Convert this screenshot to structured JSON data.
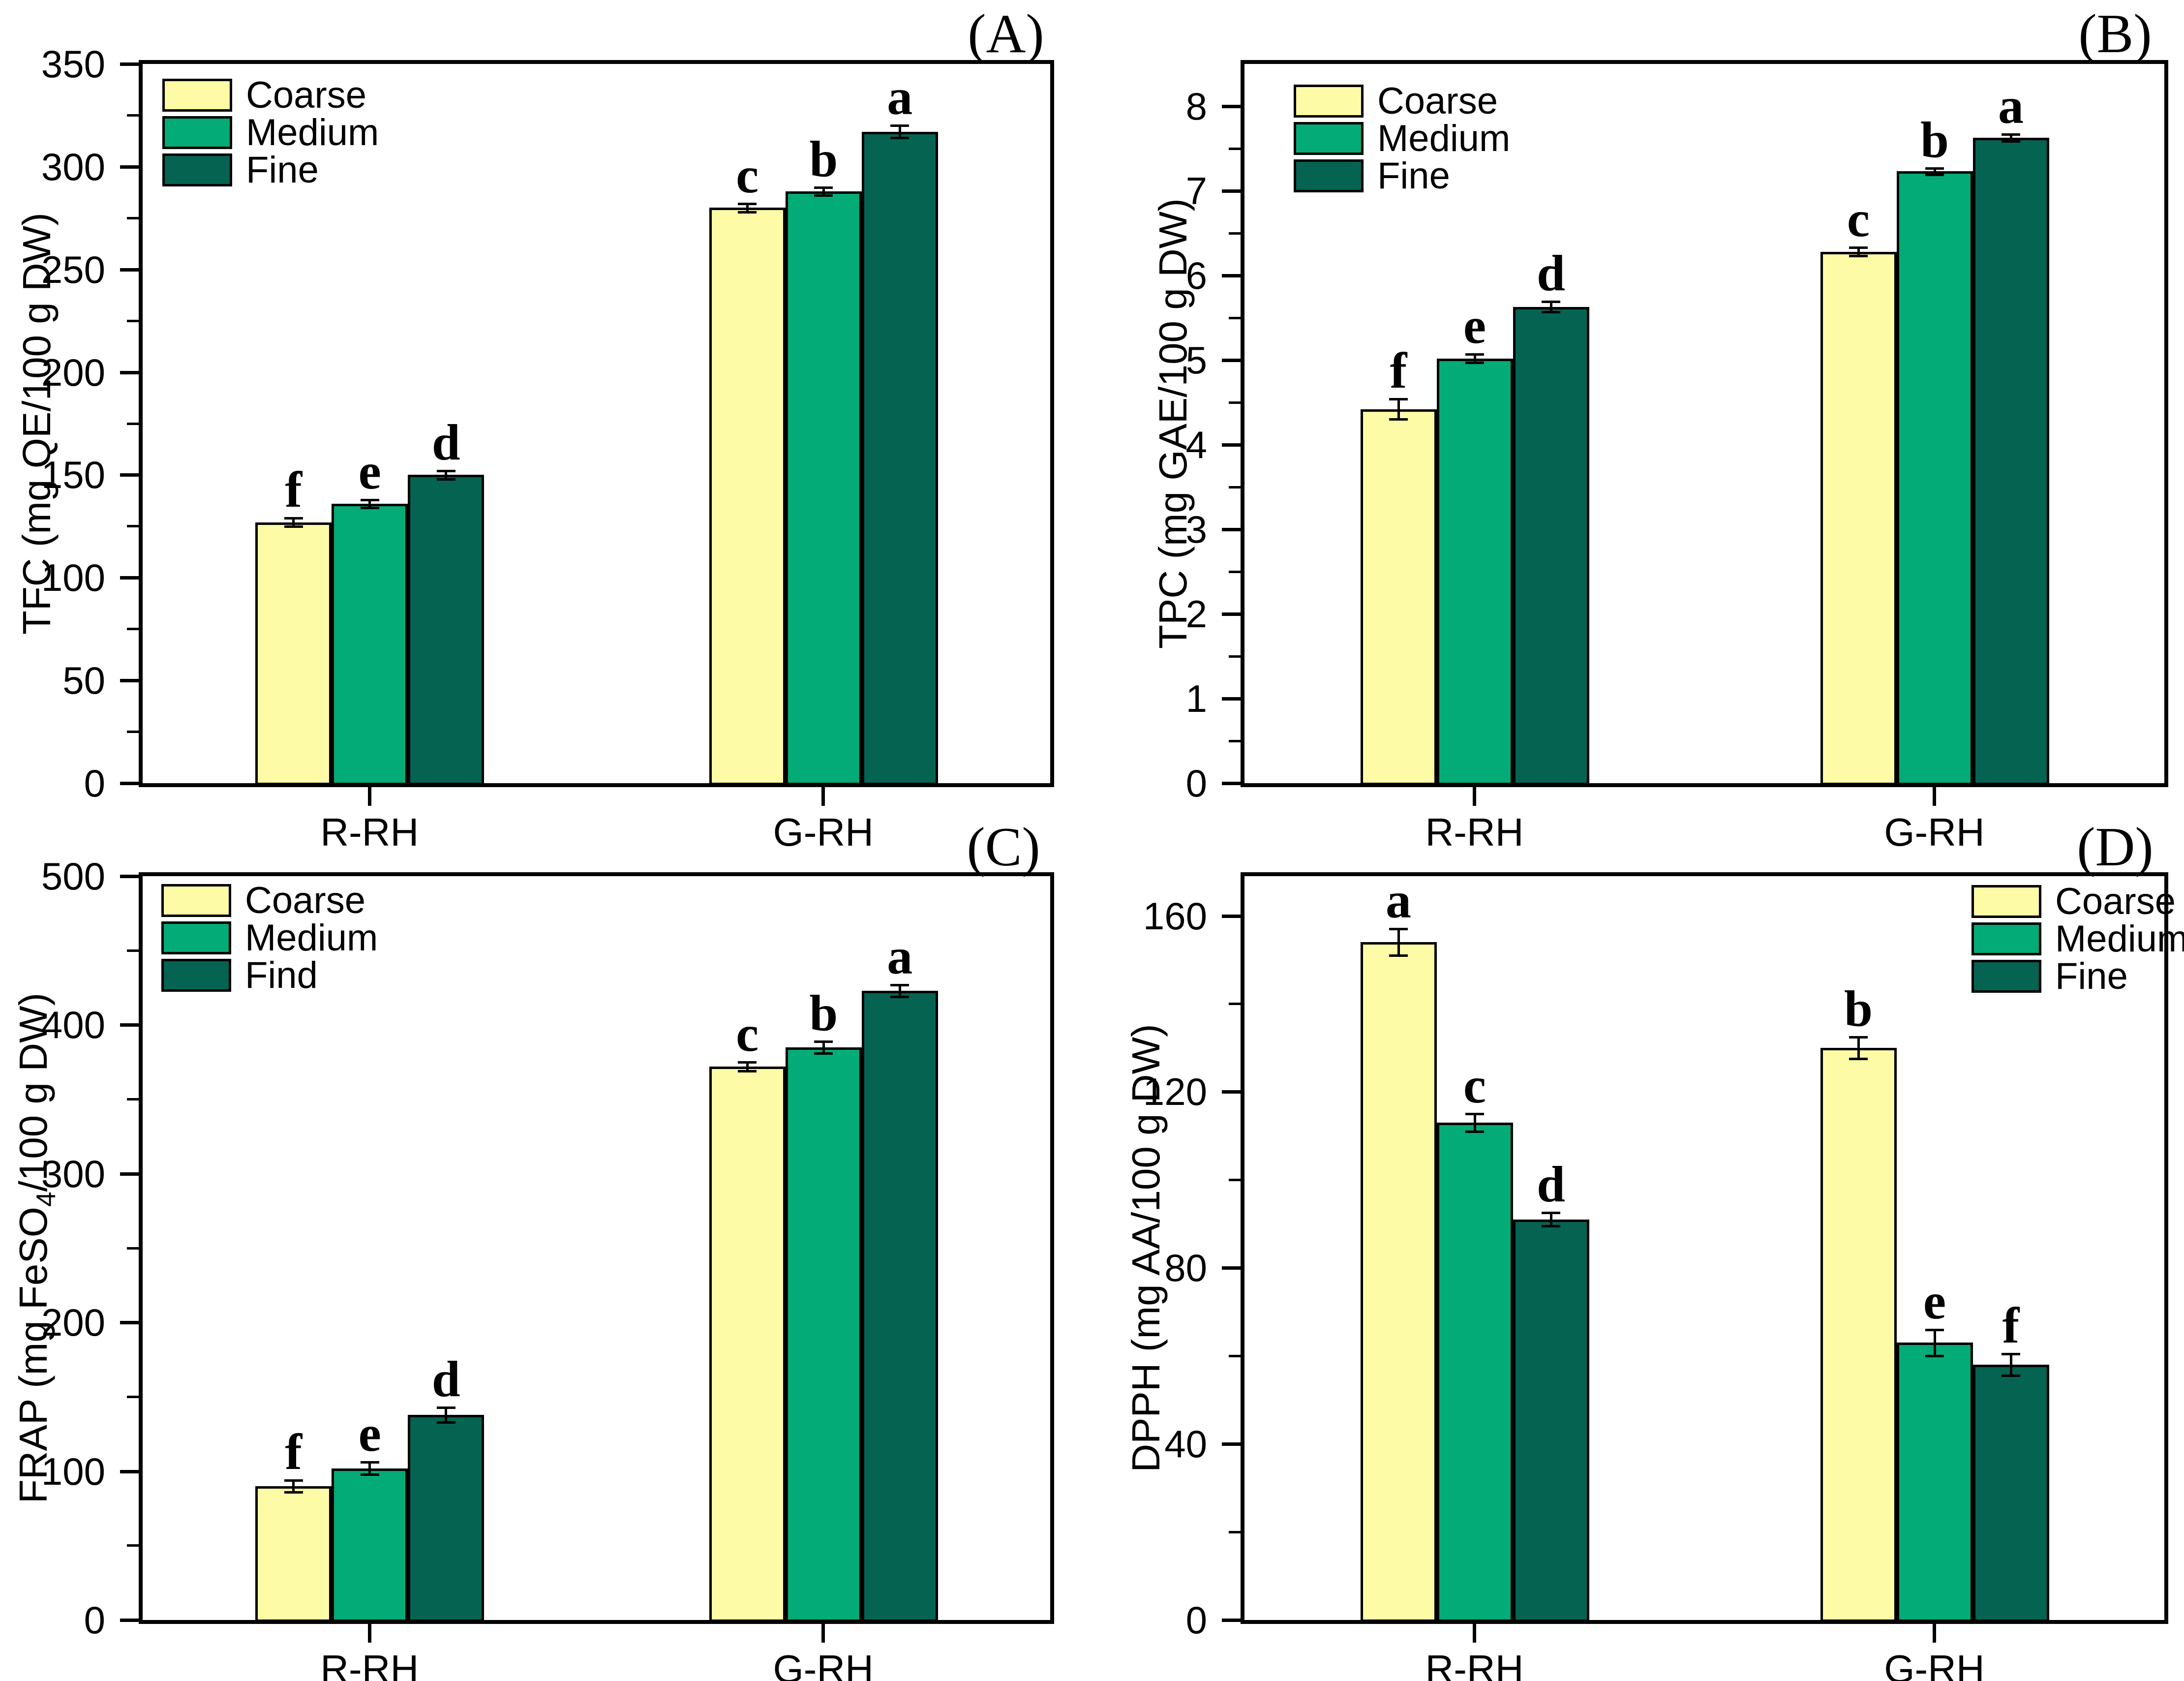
{
  "figure": {
    "background": "#ffffff",
    "frame_color": "#000000"
  },
  "colors": {
    "Coarse": "#FDFBA6",
    "Medium": "#03AB77",
    "Fine": "#056352"
  },
  "chart_data": [
    {
      "id": "A",
      "type": "bar",
      "corner_label": "(A)",
      "y_label": {
        "pre": "TFC (mg QE/100 g DW)",
        "sub": "",
        "post": ""
      },
      "ylim": [
        0,
        350
      ],
      "y_major": 50,
      "y_minor": 25,
      "y_tick_labels": [
        "0",
        "50",
        "100",
        "150",
        "200",
        "250",
        "300",
        "350"
      ],
      "categories": [
        "R-RH",
        "G-RH"
      ],
      "legend": {
        "position": "left",
        "items": [
          "Coarse",
          "Medium",
          "Fine"
        ]
      },
      "series": [
        {
          "name": "Coarse",
          "values": [
            127,
            280
          ],
          "errors": [
            2,
            2
          ],
          "letters": [
            "f",
            "c"
          ]
        },
        {
          "name": "Medium",
          "values": [
            136,
            288
          ],
          "errors": [
            2,
            2
          ],
          "letters": [
            "e",
            "b"
          ]
        },
        {
          "name": "Fine",
          "values": [
            150,
            317
          ],
          "errors": [
            2,
            3
          ],
          "letters": [
            "d",
            "a"
          ]
        }
      ]
    },
    {
      "id": "B",
      "type": "bar",
      "corner_label": "(B)",
      "y_label": {
        "pre": "TPC (mg GAE/100 g DW)",
        "sub": "",
        "post": ""
      },
      "ylim": [
        0,
        8.5
      ],
      "y_major": 1,
      "y_minor": 0.5,
      "y_tick_labels": [
        "0",
        "1",
        "2",
        "3",
        "4",
        "5",
        "6",
        "7",
        "8"
      ],
      "categories": [
        "R-RH",
        "G-RH"
      ],
      "legend": {
        "position": "left",
        "items": [
          "Coarse",
          "Medium",
          "Fine"
        ]
      },
      "series": [
        {
          "name": "Coarse",
          "values": [
            4.42,
            6.28
          ],
          "errors": [
            0.12,
            0.05
          ],
          "letters": [
            "f",
            "c"
          ]
        },
        {
          "name": "Medium",
          "values": [
            5.02,
            7.23
          ],
          "errors": [
            0.05,
            0.04
          ],
          "letters": [
            "e",
            "b"
          ]
        },
        {
          "name": "Fine",
          "values": [
            5.63,
            7.63
          ],
          "errors": [
            0.06,
            0.04
          ],
          "letters": [
            "d",
            "a"
          ]
        }
      ]
    },
    {
      "id": "C",
      "type": "bar",
      "corner_label": "(C)",
      "y_label": {
        "pre": "FRAP (mg FeSO",
        "sub": "4",
        "post": "/100 g DW)"
      },
      "ylim": [
        0,
        500
      ],
      "y_major": 100,
      "y_minor": 50,
      "y_tick_labels": [
        "0",
        "100",
        "200",
        "300",
        "400",
        "500"
      ],
      "categories": [
        "R-RH",
        "G-RH"
      ],
      "legend": {
        "position": "left",
        "items": [
          "Coarse",
          "Medium",
          "Find"
        ]
      },
      "series": [
        {
          "name": "Coarse",
          "values": [
            90,
            372
          ],
          "errors": [
            4,
            3
          ],
          "letters": [
            "f",
            "c"
          ]
        },
        {
          "name": "Medium",
          "values": [
            102,
            385
          ],
          "errors": [
            4,
            4
          ],
          "letters": [
            "e",
            "b"
          ]
        },
        {
          "name": "Fine",
          "values": [
            138,
            423
          ],
          "errors": [
            5,
            4
          ],
          "letters": [
            "d",
            "a"
          ]
        }
      ]
    },
    {
      "id": "D",
      "type": "bar",
      "corner_label": "(D)",
      "y_label": {
        "pre": "DPPH (mg AA/100 g DW)",
        "sub": "",
        "post": ""
      },
      "ylim": [
        0,
        169
      ],
      "y_major": 40,
      "y_minor": 20,
      "y_tick_labels": [
        "0",
        "40",
        "80",
        "120",
        "160"
      ],
      "categories": [
        "R-RH",
        "G-RH"
      ],
      "legend": {
        "position": "right",
        "items": [
          "Coarse",
          "Medium",
          "Fine"
        ]
      },
      "series": [
        {
          "name": "Coarse",
          "values": [
            154,
            130
          ],
          "errors": [
            3,
            2.5
          ],
          "letters": [
            "a",
            "b"
          ]
        },
        {
          "name": "Medium",
          "values": [
            113,
            63
          ],
          "errors": [
            2,
            3
          ],
          "letters": [
            "c",
            "e"
          ]
        },
        {
          "name": "Fine",
          "values": [
            91,
            58
          ],
          "errors": [
            1.5,
            2.5
          ],
          "letters": [
            "d",
            "f"
          ]
        }
      ]
    }
  ]
}
